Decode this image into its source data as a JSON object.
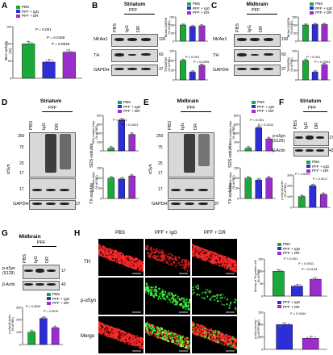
{
  "colors": {
    "pbs": "#1aa83a",
    "igg": "#2d2ed6",
    "dr": "#9a2dcc",
    "bar_outline": "#000"
  },
  "legend": {
    "pbs": "PBS",
    "igg": "PFF + IgG",
    "dr": "PFF + DR",
    "igg_short": "PFF + IgG",
    "dr_short": "PFF + DR"
  },
  "lanes": {
    "pbs": "PBS",
    "igg": "IgG",
    "dr": "DR",
    "pff": "PFF"
  },
  "panels": {
    "A": {
      "label": "A",
      "ylabel": "NKA activity\n(%)",
      "p1": "P = 0.001",
      "p2": "P = 0.0168",
      "p3": "P = 0.0048"
    },
    "B": {
      "label": "B",
      "title": "Striatum",
      "rows": [
        "NKAα1",
        "TH",
        "GAPDH"
      ],
      "mw": [
        "100",
        "60",
        "37"
      ],
      "ylabel_top": "NKAα1/GAPDH\n(% of PBS)",
      "ylabel_bot": "TH/GAPDH\n(% of PBS)",
      "p_a": "P < 0.001",
      "p_b": "P = 0.0005"
    },
    "C": {
      "label": "C",
      "title": "Midbrain",
      "rows": [
        "NKAα1",
        "TH",
        "GAPDH"
      ],
      "mw": [
        "100",
        "60",
        "37"
      ],
      "ylabel_top": "NKAα1/GAPDH\n(% of PBS)",
      "ylabel_bot": "TH/GAPDH\n(% of PBS)",
      "p_a": "P < 0.001",
      "p_b": "P = 0.0001"
    },
    "D": {
      "label": "D",
      "title": "Striatum",
      "side": "αSyn",
      "sds": "SDS-soluble",
      "tx": "TX-soluble",
      "gapdh": "GAPDH",
      "mw": [
        "250",
        "75",
        "25",
        "17",
        "17",
        "37"
      ],
      "p_a": "P < 0.001",
      "p_b": "P = 0.0021",
      "ylabel_top": "SDS-soluble αSyn\n(% of PBS)",
      "ylabel_bot": "TX-soluble αSyn\n(% of PBS)"
    },
    "E": {
      "label": "E",
      "title": "Midbrain",
      "side": "αSyn",
      "sds": "SDS-soluble",
      "tx": "TX-soluble",
      "gapdh": "GAPDH",
      "mw": [
        "250",
        "75",
        "25",
        "17",
        "17",
        "37"
      ],
      "p_a": "P < 0.001",
      "p_b": "P = 0.0012",
      "ylabel_top": "SDS-soluble αSyn\n(% of PBS)",
      "ylabel_bot": "TX-soluble αSyn\n(% of PBS)"
    },
    "F": {
      "label": "F",
      "title": "Striatum",
      "rows": [
        "p-αSyn\n(S129)",
        "β-Actin"
      ],
      "mw": [
        "17",
        "43"
      ],
      "p1": "P = 0.0008",
      "p2": "P = 0.0017",
      "ylabel": "p-αSyn/β-Actin\n(% of PBS)"
    },
    "G": {
      "label": "G",
      "title": "Midbrain",
      "rows": [
        "p-αSyn\n(S129)",
        "β-Actin"
      ],
      "mw": [
        "17",
        "43"
      ],
      "p1": "P = 0.0004",
      "p2": "P = 0.0019",
      "ylabel": "p-αSyn/β-Actin\n(% of PBS)"
    },
    "H": {
      "label": "H",
      "cols": [
        "PBS",
        "PFF + IgG",
        "PFF + DR"
      ],
      "rows": [
        "TH",
        "p-αSyn",
        "Merge"
      ],
      "ylabel_top": "Density of TH-positive cells\n(% of PBS)",
      "ylabel_bot": "p-αSyn intensity\n(% of PFF+IgG)",
      "p_a": "P < 0.001",
      "p_b": "P = 0.0011",
      "p_c": "P < 0.0133",
      "p_d": "P = 0.0044"
    }
  },
  "chart_data": [
    {
      "id": "A",
      "type": "bar",
      "categories": [
        "PBS",
        "PFF + IgG",
        "PFF + DR"
      ],
      "values": [
        100,
        47,
        76
      ],
      "ylim": [
        0,
        150
      ],
      "ticks": [
        0,
        50,
        100,
        150
      ]
    },
    {
      "id": "B-top",
      "type": "bar",
      "categories": [
        "PBS",
        "PFF + IgG",
        "PFF + DR"
      ],
      "values": [
        100,
        90,
        95
      ],
      "ylim": [
        0,
        150
      ],
      "ticks": [
        0,
        50,
        100,
        150
      ]
    },
    {
      "id": "B-bot",
      "type": "bar",
      "categories": [
        "PBS",
        "PFF + IgG",
        "PFF + DR"
      ],
      "values": [
        100,
        40,
        75
      ],
      "ylim": [
        0,
        150
      ],
      "ticks": [
        0,
        50,
        100,
        150
      ]
    },
    {
      "id": "C-top",
      "type": "bar",
      "categories": [
        "PBS",
        "PFF + IgG",
        "PFF + DR"
      ],
      "values": [
        100,
        103,
        104
      ],
      "ylim": [
        0,
        150
      ],
      "ticks": [
        0,
        50,
        100,
        150
      ]
    },
    {
      "id": "C-bot",
      "type": "bar",
      "categories": [
        "PBS",
        "PFF + IgG",
        "PFF + DR"
      ],
      "values": [
        100,
        40,
        78
      ],
      "ylim": [
        0,
        150
      ],
      "ticks": [
        0,
        50,
        100,
        150
      ]
    },
    {
      "id": "D-top",
      "type": "bar",
      "categories": [
        "PBS",
        "PFF + IgG",
        "PFF + DR"
      ],
      "values": [
        60,
        690,
        370
      ],
      "ylim": [
        0,
        800
      ],
      "ticks": [
        0,
        200,
        400,
        600,
        800
      ]
    },
    {
      "id": "D-bot",
      "type": "bar",
      "categories": [
        "PBS",
        "PFF + IgG",
        "PFF + DR"
      ],
      "values": [
        100,
        95,
        110
      ],
      "ylim": [
        0,
        150
      ],
      "ticks": [
        0,
        50,
        100,
        150
      ]
    },
    {
      "id": "E-top",
      "type": "bar",
      "categories": [
        "PBS",
        "PFF + IgG",
        "PFF + DR"
      ],
      "values": [
        60,
        520,
        270
      ],
      "ylim": [
        0,
        800
      ],
      "ticks": [
        0,
        200,
        400,
        600,
        800
      ]
    },
    {
      "id": "E-bot",
      "type": "bar",
      "categories": [
        "PBS",
        "PFF + IgG",
        "PFF + DR"
      ],
      "values": [
        100,
        90,
        100
      ],
      "ylim": [
        0,
        150
      ],
      "ticks": [
        0,
        50,
        100,
        150
      ]
    },
    {
      "id": "F",
      "type": "bar",
      "categories": [
        "PBS",
        "PFF + IgG",
        "PFF + DR"
      ],
      "values": [
        100,
        200,
        120
      ],
      "ylim": [
        0,
        300
      ],
      "ticks": [
        0,
        100,
        200,
        300
      ]
    },
    {
      "id": "G",
      "type": "bar",
      "categories": [
        "PBS",
        "PFF + IgG",
        "PFF + DR"
      ],
      "values": [
        100,
        210,
        135
      ],
      "ylim": [
        0,
        300
      ],
      "ticks": [
        0,
        100,
        200,
        300
      ]
    },
    {
      "id": "H-top",
      "type": "bar",
      "categories": [
        "PBS",
        "PFF + IgG",
        "PFF + DR"
      ],
      "values": [
        100,
        40,
        68
      ],
      "ylim": [
        0,
        150
      ],
      "ticks": [
        0,
        50,
        100,
        150
      ]
    },
    {
      "id": "H-bot",
      "type": "bar",
      "categories": [
        "PFF + IgG",
        "PFF + DR"
      ],
      "values": [
        100,
        45
      ],
      "ylim": [
        0,
        150
      ],
      "ticks": [
        0,
        50,
        100,
        150
      ]
    }
  ]
}
